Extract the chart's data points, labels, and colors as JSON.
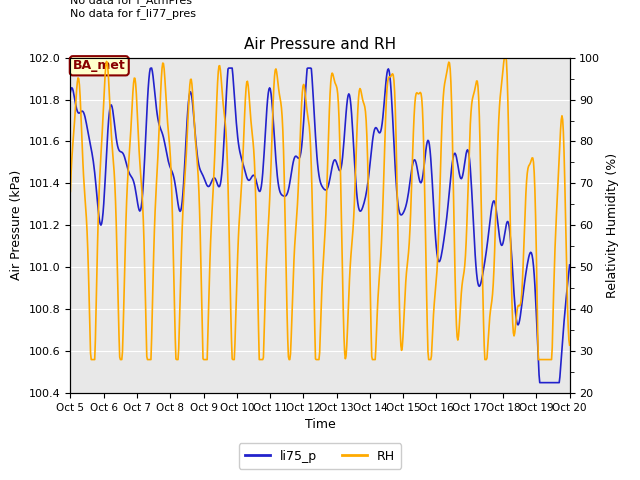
{
  "title": "Air Pressure and RH",
  "xlabel": "Time",
  "ylabel_left": "Air Pressure (kPa)",
  "ylabel_right": "Relativity Humidity (%)",
  "annotation_text": "No data for f_AtmPres\nNo data for f_li77_pres",
  "box_label": "BA_met",
  "legend_entries": [
    "li75_p",
    "RH"
  ],
  "colors": {
    "blue": "#2222cc",
    "orange": "#ffaa00",
    "box_bg": "#ffffcc",
    "box_edge": "#880000",
    "box_text": "#880000",
    "plot_bg": "#e8e8e8",
    "grid": "#ffffff"
  },
  "ylim_left": [
    100.4,
    102.0
  ],
  "ylim_right": [
    20,
    100
  ],
  "yticks_left": [
    100.4,
    100.6,
    100.8,
    101.0,
    101.2,
    101.4,
    101.6,
    101.8,
    102.0
  ],
  "yticks_right": [
    20,
    30,
    40,
    50,
    60,
    70,
    80,
    90,
    100
  ],
  "x_tick_labels": [
    "Oct 5",
    "Oct 6",
    "Oct 7",
    "Oct 8",
    "Oct 9",
    "Oct 10",
    "Oct 11",
    "Oct 12",
    "Oct 13",
    "Oct 14",
    "Oct 15",
    "Oct 16",
    "Oct 17",
    "Oct 18",
    "Oct 19",
    "Oct 20"
  ],
  "figsize": [
    6.4,
    4.8
  ],
  "dpi": 100
}
